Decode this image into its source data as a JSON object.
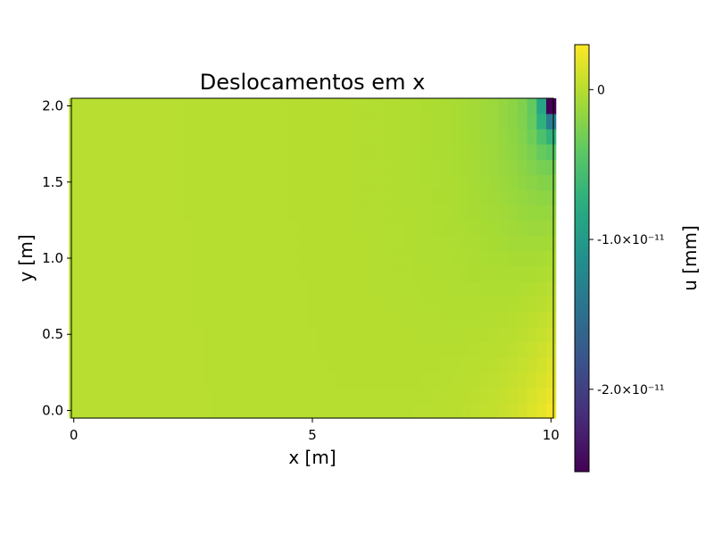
{
  "chart_data": {
    "type": "heatmap",
    "title": "Deslocamentos em x",
    "xlabel": "x [m]",
    "ylabel": "y [m]",
    "xlim": [
      -0.05,
      10.05
    ],
    "ylim": [
      -0.05,
      2.05
    ],
    "xticks": [
      0,
      5,
      10
    ],
    "xtick_labels": [
      "0",
      "5",
      "10"
    ],
    "yticks": [
      0.0,
      0.5,
      1.0,
      1.5,
      2.0
    ],
    "ytick_labels": [
      "0.0",
      "0.5",
      "1.0",
      "1.5",
      "2.0"
    ],
    "grid": false,
    "colormap": "viridis",
    "colorbar": {
      "label": "u [mm]",
      "range": [
        -2.55e-11,
        3e-12
      ],
      "ticks": [
        0,
        -1e-11,
        -2e-11
      ],
      "tick_labels": [
        "0",
        "-1.0×10⁻¹¹",
        "-2.0×10⁻¹¹"
      ]
    },
    "grid_resolution": [
      51,
      21
    ],
    "x_range": [
      0,
      10
    ],
    "y_range": [
      0,
      2
    ],
    "field_description": "Displacement field: approximately 0 over most of the domain, positive (up to ~0.3e-11 mm) near the lower-right edge (x=10, y=0), negative near the top-right corner with a minimum of ~-2.55e-11 mm at (x=10, y=2)."
  }
}
